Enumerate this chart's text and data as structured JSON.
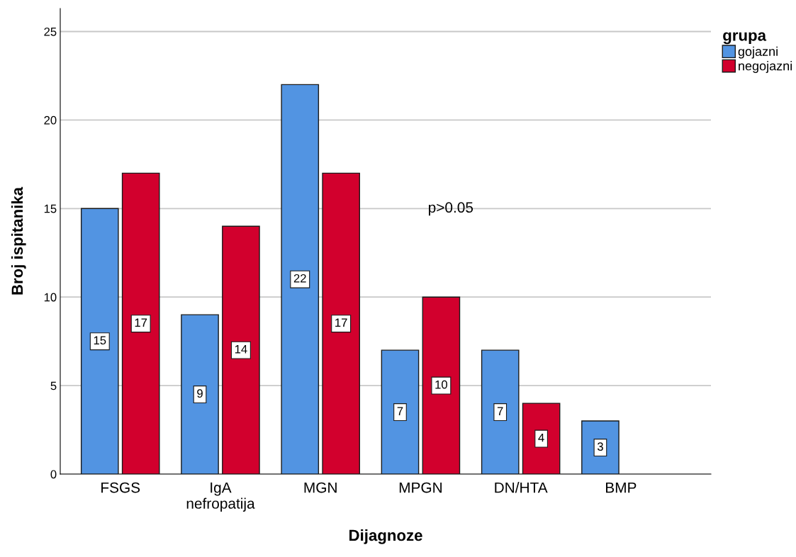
{
  "chart_data": {
    "type": "bar",
    "xlabel": "Dijagnoze",
    "ylabel": "Broj ispitanika",
    "legend_title": "grupa",
    "categories": [
      "FSGS",
      "IgA\nnefropatija",
      "MGN",
      "MPGN",
      "DN/HTA",
      "BMP"
    ],
    "series": [
      {
        "name": "gojazni",
        "color": "#5294e2",
        "values": [
          15,
          9,
          22,
          7,
          7,
          3
        ]
      },
      {
        "name": "negojazni",
        "color": "#d2002d",
        "values": [
          17,
          14,
          17,
          10,
          4,
          null
        ]
      }
    ],
    "ylim": [
      0,
      26.3
    ],
    "yticks": [
      0,
      5,
      10,
      15,
      20,
      25
    ],
    "grid": "y",
    "legend": "right",
    "data_labels": true,
    "annotations": [
      "p>0.05"
    ]
  }
}
